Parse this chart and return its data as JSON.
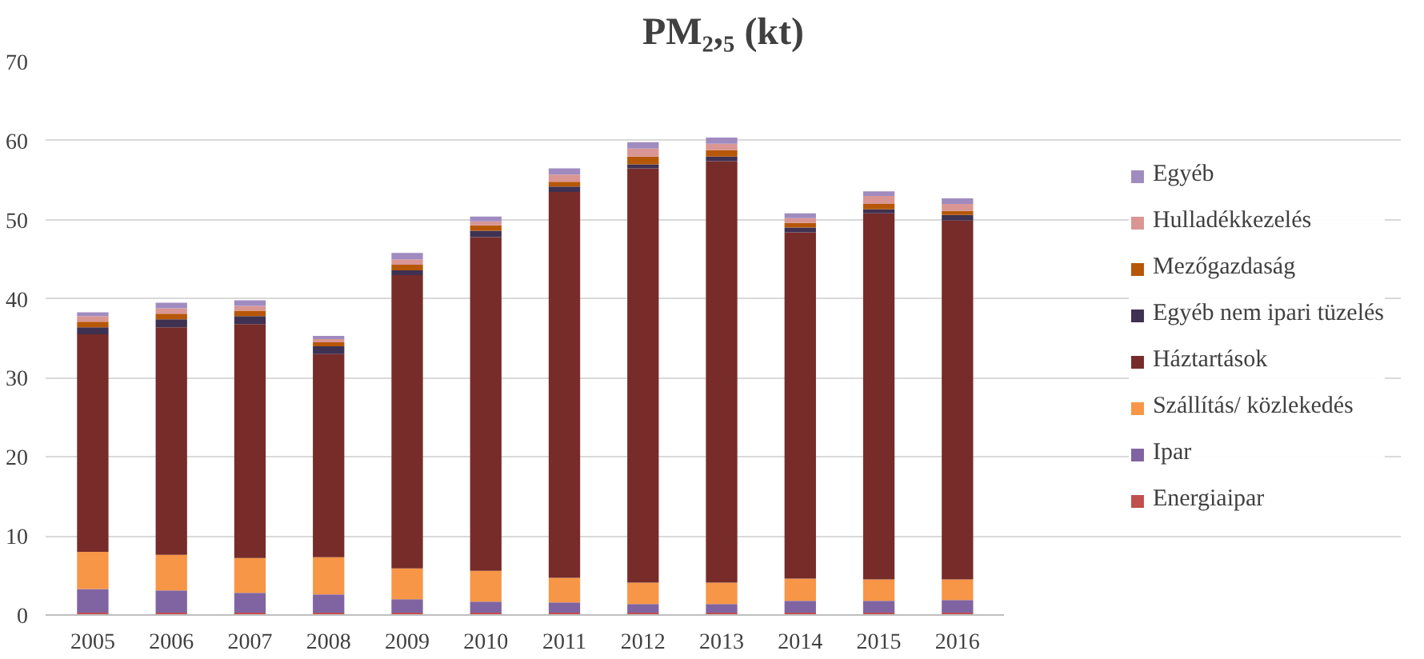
{
  "chart_data": {
    "type": "bar",
    "stacked": true,
    "title": "PM₂,₅ (kt)",
    "categories": [
      "2005",
      "2006",
      "2007",
      "2008",
      "2009",
      "2010",
      "2011",
      "2012",
      "2013",
      "2014",
      "2015",
      "2016"
    ],
    "series": [
      {
        "name": "Energiaipar",
        "color": "#c0504d",
        "values": [
          0.3,
          0.3,
          0.3,
          0.3,
          0.3,
          0.3,
          0.3,
          0.3,
          0.3,
          0.3,
          0.3,
          0.3
        ]
      },
      {
        "name": "Ipar",
        "color": "#8064a2",
        "values": [
          3.0,
          2.8,
          2.5,
          2.3,
          1.7,
          1.4,
          1.3,
          1.1,
          1.1,
          1.5,
          1.5,
          1.6
        ]
      },
      {
        "name": "Szállítás/ közlekedés",
        "color": "#f79646",
        "values": [
          4.7,
          4.5,
          4.4,
          4.7,
          3.9,
          3.9,
          3.1,
          2.7,
          2.7,
          2.8,
          2.7,
          2.6
        ]
      },
      {
        "name": "Háztartások",
        "color": "#772c2a",
        "values": [
          27.5,
          28.8,
          29.6,
          25.7,
          37.1,
          42.2,
          48.8,
          52.4,
          53.3,
          43.8,
          46.3,
          45.4
        ]
      },
      {
        "name": "Egyéb nem ipari tüzelés",
        "color": "#3f3151",
        "values": [
          0.9,
          1.0,
          1.0,
          1.0,
          0.6,
          0.8,
          0.7,
          0.5,
          0.6,
          0.6,
          0.5,
          0.7
        ]
      },
      {
        "name": "Mezőgazdaság",
        "color": "#b65708",
        "values": [
          0.7,
          0.7,
          0.7,
          0.5,
          0.7,
          0.7,
          0.6,
          1.0,
          0.8,
          0.6,
          0.7,
          0.5
        ]
      },
      {
        "name": "Hulladékkezelés",
        "color": "#d99694",
        "values": [
          0.7,
          0.7,
          0.6,
          0.4,
          0.7,
          0.5,
          0.9,
          1.0,
          0.8,
          0.6,
          1.0,
          0.9
        ]
      },
      {
        "name": "Egyéb",
        "color": "#a08bc0",
        "values": [
          0.5,
          0.7,
          0.7,
          0.4,
          0.8,
          0.6,
          0.8,
          0.8,
          0.8,
          0.6,
          0.6,
          0.7
        ]
      }
    ],
    "ylim": [
      0,
      70
    ],
    "yticks": [
      0,
      10,
      20,
      30,
      40,
      50,
      60,
      70
    ],
    "grid": "y",
    "legend": "right"
  }
}
